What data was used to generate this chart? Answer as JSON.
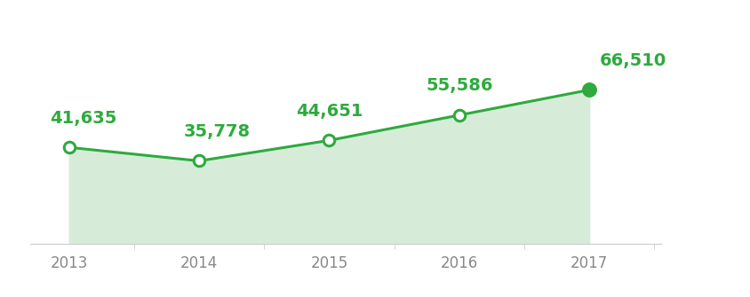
{
  "years": [
    2013,
    2014,
    2015,
    2016,
    2017
  ],
  "values": [
    41635,
    35778,
    44651,
    55586,
    66510
  ],
  "labels": [
    "41,635",
    "35,778",
    "44,651",
    "55,586",
    "66,510"
  ],
  "line_color": "#2eaa3f",
  "fill_color": "#d6ecd9",
  "marker_fill_open": "#ffffff",
  "marker_fill_closed": "#2eaa3f",
  "marker_edge_color": "#2eaa3f",
  "label_color": "#2eaa3f",
  "tick_color": "#888888",
  "background_color": "#ffffff",
  "label_fontsize": 14,
  "tick_fontsize": 12,
  "ylim_bottom": 0,
  "ylim_top": 90000,
  "xlim_left": 2012.7,
  "xlim_right": 2017.55
}
